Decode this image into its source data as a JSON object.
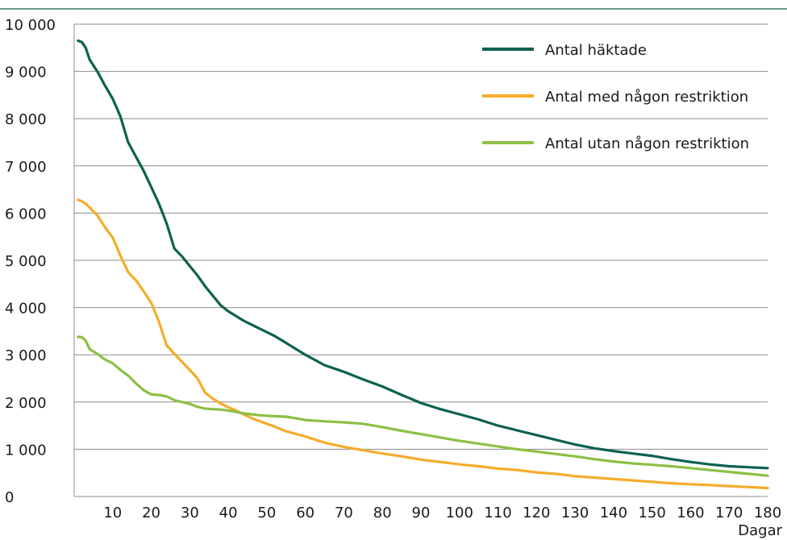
{
  "chart_data": {
    "type": "line",
    "xlabel": "Dagar",
    "ylabel": "",
    "title": "",
    "xlim": [
      0,
      180
    ],
    "ylim": [
      0,
      10000
    ],
    "x_ticks": [
      10,
      20,
      30,
      40,
      50,
      60,
      70,
      80,
      90,
      100,
      110,
      120,
      130,
      140,
      150,
      160,
      170,
      180
    ],
    "y_ticks": [
      0,
      1000,
      2000,
      3000,
      4000,
      5000,
      6000,
      7000,
      8000,
      9000,
      10000
    ],
    "x_tick_labels": [
      "10",
      "20",
      "30",
      "40",
      "50",
      "60",
      "70",
      "80",
      "90",
      "100",
      "110",
      "120",
      "130",
      "140",
      "150",
      "160",
      "170",
      "180"
    ],
    "y_tick_labels": [
      "0",
      "1 000",
      "2 000",
      "3 000",
      "4 000",
      "5 000",
      "6 000",
      "7 000",
      "8 000",
      "9 000",
      "10 000"
    ],
    "grid": "horizontal",
    "legend_position": "top-right",
    "x": [
      1,
      2,
      3,
      4,
      6,
      8,
      10,
      12,
      14,
      16,
      18,
      20,
      22,
      24,
      26,
      28,
      30,
      32,
      34,
      36,
      38,
      40,
      42,
      44,
      46,
      48,
      50,
      52,
      55,
      60,
      65,
      70,
      75,
      80,
      85,
      90,
      95,
      100,
      105,
      110,
      115,
      120,
      125,
      130,
      135,
      140,
      145,
      150,
      155,
      160,
      165,
      170,
      175,
      180
    ],
    "series": [
      {
        "name": "Antal häktade",
        "color": "#0d6150",
        "values": [
          9650,
          9620,
          9500,
          9250,
          9000,
          8700,
          8420,
          8050,
          7500,
          7200,
          6900,
          6550,
          6200,
          5780,
          5250,
          5080,
          4880,
          4680,
          4450,
          4250,
          4050,
          3920,
          3820,
          3720,
          3640,
          3560,
          3480,
          3400,
          3250,
          3000,
          2780,
          2640,
          2480,
          2330,
          2150,
          1980,
          1850,
          1740,
          1630,
          1500,
          1400,
          1300,
          1200,
          1100,
          1020,
          960,
          910,
          860,
          790,
          730,
          680,
          640,
          620,
          600
        ]
      },
      {
        "name": "Antal med någon restriktion",
        "color": "#f5ac2a",
        "values": [
          6280,
          6250,
          6200,
          6120,
          5950,
          5700,
          5480,
          5100,
          4750,
          4580,
          4350,
          4100,
          3700,
          3200,
          3020,
          2850,
          2680,
          2500,
          2200,
          2070,
          1970,
          1890,
          1820,
          1740,
          1660,
          1600,
          1540,
          1480,
          1380,
          1270,
          1140,
          1050,
          980,
          910,
          850,
          780,
          730,
          680,
          640,
          590,
          560,
          510,
          480,
          430,
          400,
          370,
          340,
          310,
          280,
          260,
          240,
          220,
          200,
          180
        ]
      },
      {
        "name": "Antal utan någon restriktion",
        "color": "#8cbf45",
        "values": [
          3380,
          3370,
          3300,
          3120,
          3020,
          2900,
          2820,
          2680,
          2560,
          2400,
          2250,
          2160,
          2150,
          2120,
          2040,
          2000,
          1960,
          1900,
          1860,
          1850,
          1840,
          1820,
          1790,
          1760,
          1740,
          1720,
          1710,
          1700,
          1690,
          1620,
          1590,
          1570,
          1540,
          1470,
          1390,
          1320,
          1250,
          1180,
          1120,
          1060,
          1000,
          950,
          900,
          850,
          790,
          740,
          700,
          670,
          640,
          600,
          560,
          520,
          480,
          440
        ]
      }
    ]
  }
}
